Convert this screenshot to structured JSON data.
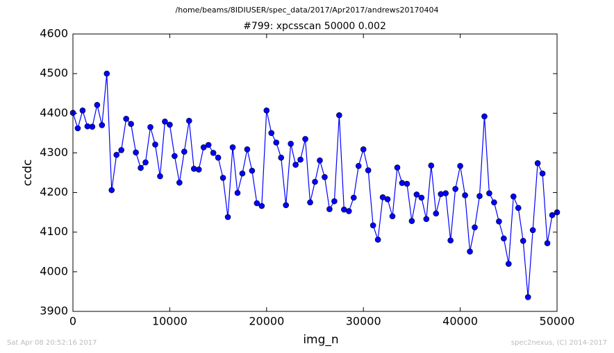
{
  "chart_data": {
    "type": "line",
    "suptitle": "/home/beams/8IDIUSER/spec_data/2017/Apr2017/andrews20170404",
    "title": "#799: xpcsscan 50000 0.002",
    "x_label": "img_n",
    "y_label": "ccdc",
    "timestamp": "Sat Apr 08 20:52:16 2017",
    "credit": "spec2nexus, (C) 2014-2017",
    "xlim": [
      0,
      50000
    ],
    "xticks": [
      0,
      10000,
      20000,
      30000,
      40000,
      50000
    ],
    "ylim": [
      3900,
      4600
    ],
    "yticks": [
      3900,
      4000,
      4100,
      4200,
      4300,
      4400,
      4500,
      4600
    ],
    "x": [
      0,
      500,
      1000,
      1500,
      2000,
      2500,
      3000,
      3500,
      4000,
      4500,
      5000,
      5500,
      6000,
      6500,
      7000,
      7500,
      8000,
      8500,
      9000,
      9500,
      10000,
      10500,
      11000,
      11500,
      12000,
      12500,
      13000,
      13500,
      14000,
      14500,
      15000,
      15500,
      16000,
      16500,
      17000,
      17500,
      18000,
      18500,
      19000,
      19500,
      20000,
      20500,
      21000,
      21500,
      22000,
      22500,
      23000,
      23500,
      24000,
      24500,
      25000,
      25500,
      26000,
      26500,
      27000,
      27500,
      28000,
      28500,
      29000,
      29500,
      30000,
      30500,
      31000,
      31500,
      32000,
      32500,
      33000,
      33500,
      34000,
      34500,
      35000,
      35500,
      36000,
      36500,
      37000,
      37500,
      38000,
      38500,
      39000,
      39500,
      40000,
      40500,
      41000,
      41500,
      42000,
      42500,
      43000,
      43500,
      44000,
      44500,
      45000,
      45500,
      46000,
      46500,
      47000,
      47500,
      48000,
      48500,
      49000,
      49500,
      50000
    ],
    "series": [
      {
        "name": "ccdc",
        "color": "#0000ff",
        "values": [
          4401,
          4362,
          4407,
          4367,
          4366,
          4421,
          4370,
          4500,
          4206,
          4295,
          4307,
          4386,
          4373,
          4301,
          4262,
          4276,
          4365,
          4321,
          4241,
          4379,
          4371,
          4292,
          4225,
          4303,
          4381,
          4260,
          4258,
          4314,
          4320,
          4300,
          4288,
          4237,
          4138,
          4314,
          4199,
          4248,
          4309,
          4255,
          4173,
          4166,
          4407,
          4350,
          4326,
          4288,
          4168,
          4323,
          4270,
          4283,
          4335,
          4175,
          4227,
          4281,
          4239,
          4158,
          4178,
          4395,
          4157,
          4153,
          4187,
          4267,
          4309,
          4256,
          4117,
          4081,
          4188,
          4183,
          4140,
          4263,
          4224,
          4222,
          4128,
          4195,
          4187,
          4133,
          4268,
          4147,
          4196,
          4198,
          4079,
          4209,
          4267,
          4193,
          4051,
          4112,
          4191,
          4392,
          4198,
          4175,
          4127,
          4084,
          4020,
          4190,
          4161,
          4078,
          3936,
          4105,
          4274,
          4248,
          4072,
          4143,
          4150
        ]
      }
    ]
  }
}
